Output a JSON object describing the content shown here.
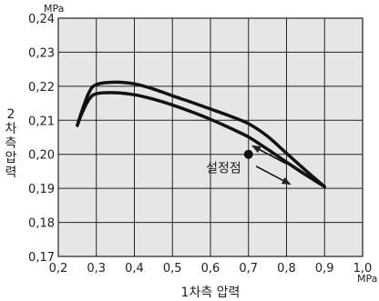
{
  "chart_data": {
    "type": "line",
    "title": "",
    "xlabel": "1차측 압력",
    "ylabel": "2차측 압력",
    "x_unit": "MPa",
    "y_unit": "MPa",
    "xlim": [
      0.2,
      1.0
    ],
    "ylim": [
      0.17,
      0.24
    ],
    "xticks": [
      "0,2",
      "0,3",
      "0,4",
      "0,5",
      "0,6",
      "0,7",
      "0,8",
      "0,9",
      "1,0"
    ],
    "yticks": [
      "0,17",
      "0,18",
      "0,19",
      "0,20",
      "0,21",
      "0,22",
      "0,23",
      "0,24"
    ],
    "grid": true,
    "series": [
      {
        "x": [
          0.25,
          0.26,
          0.28,
          0.3,
          0.35,
          0.4,
          0.45,
          0.5,
          0.55,
          0.6,
          0.65,
          0.7,
          0.75,
          0.8,
          0.85,
          0.9
        ],
        "y": [
          0.2085,
          0.212,
          0.218,
          0.2205,
          0.2212,
          0.2207,
          0.2192,
          0.2172,
          0.2153,
          0.2133,
          0.2113,
          0.209,
          0.2053,
          0.2003,
          0.1953,
          0.1905
        ]
      },
      {
        "x": [
          0.25,
          0.26,
          0.28,
          0.3,
          0.35,
          0.4,
          0.45,
          0.5,
          0.55,
          0.6,
          0.65,
          0.7,
          0.75,
          0.8,
          0.85,
          0.9
        ],
        "y": [
          0.2085,
          0.2115,
          0.216,
          0.2178,
          0.2181,
          0.2175,
          0.2162,
          0.2145,
          0.2125,
          0.2103,
          0.2078,
          0.2051,
          0.2015,
          0.1977,
          0.194,
          0.1905
        ]
      }
    ],
    "set_point": {
      "x": 0.7,
      "y": 0.2,
      "label": "설정점"
    },
    "arrows": [
      {
        "from": [
          0.8,
          0.1972
        ],
        "to": [
          0.71,
          0.2025
        ]
      },
      {
        "from": [
          0.72,
          0.1965
        ],
        "to": [
          0.81,
          0.1912
        ]
      }
    ]
  }
}
